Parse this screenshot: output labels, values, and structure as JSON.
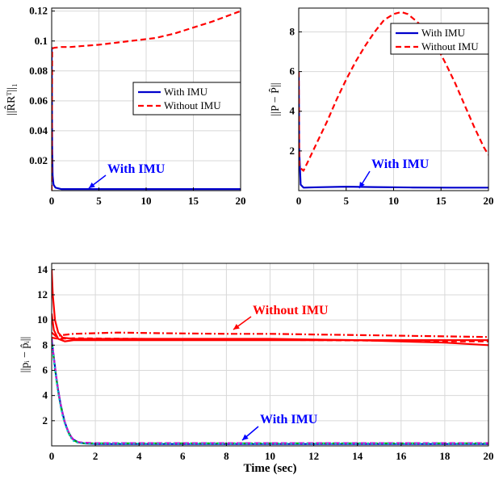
{
  "chart_data": [
    {
      "id": "top-left",
      "type": "line",
      "title": "",
      "xlabel": "",
      "ylabel": "||R̂Rᵀ||₁",
      "xlim": [
        0,
        20
      ],
      "ylim": [
        0,
        0.122
      ],
      "xticks": [
        "0",
        "5",
        "10",
        "15",
        "20"
      ],
      "yticks": [
        "0.02",
        "0.04",
        "0.06",
        "0.08",
        "0.1",
        "0.12"
      ],
      "grid": true,
      "legend": {
        "placement": "center-right",
        "entries": [
          "With IMU",
          "Without IMU"
        ]
      },
      "annotations": [
        {
          "text": "With IMU",
          "color": "#0000ff"
        }
      ],
      "series": [
        {
          "name": "With IMU",
          "color": "#0000cc",
          "dash": "solid",
          "x": [
            0,
            0.05,
            0.1,
            0.2,
            0.4,
            0.7,
            1,
            2,
            5,
            10,
            15,
            20
          ],
          "y": [
            0.096,
            0.03,
            0.01,
            0.004,
            0.002,
            0.0015,
            0.001,
            0.001,
            0.001,
            0.001,
            0.001,
            0.001
          ]
        },
        {
          "name": "Without IMU",
          "color": "#ff0000",
          "dash": "dashed",
          "x": [
            0,
            0.05,
            0.3,
            1,
            2,
            3,
            5,
            7,
            9,
            11,
            13,
            15,
            17,
            20
          ],
          "y": [
            0.0,
            0.095,
            0.0955,
            0.096,
            0.096,
            0.0965,
            0.0975,
            0.099,
            0.1005,
            0.102,
            0.105,
            0.109,
            0.113,
            0.12
          ]
        }
      ]
    },
    {
      "id": "top-right",
      "type": "line",
      "title": "",
      "xlabel": "",
      "ylabel": "||P − P̂||",
      "xlim": [
        0,
        20
      ],
      "ylim": [
        0,
        9.2
      ],
      "xticks": [
        "0",
        "5",
        "10",
        "15",
        "20"
      ],
      "yticks": [
        "2",
        "4",
        "6",
        "8"
      ],
      "grid": true,
      "legend": {
        "placement": "top-right",
        "entries": [
          "With IMU",
          "Without IMU"
        ]
      },
      "annotations": [
        {
          "text": "With IMU",
          "color": "#0000ff"
        }
      ],
      "series": [
        {
          "name": "With IMU",
          "color": "#0000cc",
          "dash": "solid",
          "x": [
            0,
            0.05,
            0.2,
            0.5,
            2,
            5,
            8,
            12,
            16,
            20
          ],
          "y": [
            6.0,
            2.0,
            0.3,
            0.15,
            0.17,
            0.2,
            0.18,
            0.16,
            0.15,
            0.15
          ]
        },
        {
          "name": "Without IMU",
          "color": "#ff0000",
          "dash": "dashed",
          "x": [
            0,
            0.05,
            0.5,
            1,
            2,
            3,
            4,
            5,
            6,
            7,
            8,
            9,
            10,
            10.8,
            11.5,
            12.5,
            13.5,
            14.5,
            15.5,
            16.5,
            17.5,
            18.5,
            19.5,
            20
          ],
          "y": [
            6.0,
            1.2,
            1.0,
            1.5,
            2.5,
            3.5,
            4.6,
            5.6,
            6.5,
            7.3,
            8.0,
            8.6,
            8.9,
            9.0,
            8.9,
            8.5,
            8.0,
            7.3,
            6.4,
            5.4,
            4.3,
            3.2,
            2.2,
            1.8
          ]
        }
      ]
    },
    {
      "id": "bottom",
      "type": "line",
      "title": "",
      "xlabel": "Time (sec)",
      "ylabel": "||pᵢ − p̂ᵢ||",
      "xlim": [
        0,
        20
      ],
      "ylim": [
        0,
        14.5
      ],
      "xticks": [
        "0",
        "2",
        "4",
        "6",
        "8",
        "10",
        "12",
        "14",
        "16",
        "18",
        "20"
      ],
      "yticks": [
        "2",
        "4",
        "6",
        "8",
        "10",
        "12",
        "14"
      ],
      "grid": true,
      "legend": null,
      "annotations": [
        {
          "text": "Without IMU",
          "color": "#ff0000"
        },
        {
          "text": "With IMU",
          "color": "#0000ff"
        }
      ],
      "series": [
        {
          "color": "#ff0000",
          "dash": "solid",
          "x": [
            0,
            0.05,
            0.15,
            0.3,
            0.5,
            1,
            3,
            6,
            10,
            14,
            18,
            20
          ],
          "y": [
            14.0,
            12.0,
            10.0,
            9.0,
            8.6,
            8.5,
            8.5,
            8.5,
            8.5,
            8.4,
            8.2,
            8.0
          ]
        },
        {
          "color": "#ff0000",
          "dash": "solid",
          "x": [
            0,
            0.1,
            0.3,
            0.6,
            1,
            4,
            8,
            12,
            16,
            20
          ],
          "y": [
            10.5,
            9.2,
            8.5,
            8.3,
            8.4,
            8.4,
            8.4,
            8.4,
            8.4,
            8.4
          ]
        },
        {
          "color": "#ff0000",
          "dash": "dashdot",
          "x": [
            0,
            0.2,
            0.5,
            1,
            2,
            3,
            5,
            8,
            10,
            12,
            14,
            16,
            18,
            20
          ],
          "y": [
            9.0,
            8.7,
            8.8,
            8.9,
            8.95,
            9.0,
            8.95,
            8.9,
            8.9,
            8.85,
            8.8,
            8.75,
            8.7,
            8.65
          ]
        },
        {
          "color": "#ff0000",
          "dash": "dashed",
          "x": [
            0,
            0.3,
            1,
            4,
            8,
            12,
            16,
            18,
            20
          ],
          "y": [
            8.6,
            8.5,
            8.55,
            8.5,
            8.45,
            8.4,
            8.35,
            8.3,
            8.3
          ]
        },
        {
          "color": "#0000cc",
          "dash": "solid",
          "x": [
            0,
            0.1,
            0.2,
            0.3,
            0.4,
            0.5,
            0.6,
            0.7,
            0.8,
            0.9,
            1.0,
            1.2,
            1.5,
            2,
            5,
            10,
            15,
            20
          ],
          "y": [
            8.5,
            7.0,
            5.6,
            4.4,
            3.4,
            2.6,
            1.9,
            1.4,
            1.0,
            0.7,
            0.5,
            0.3,
            0.2,
            0.15,
            0.15,
            0.15,
            0.15,
            0.15
          ]
        },
        {
          "color": "#00aa00",
          "dash": "dashdot",
          "x": [
            0,
            0.1,
            0.2,
            0.3,
            0.4,
            0.5,
            0.6,
            0.7,
            0.8,
            0.9,
            1.0,
            1.2,
            1.5,
            2,
            5,
            10,
            15,
            20
          ],
          "y": [
            8.3,
            6.9,
            5.5,
            4.3,
            3.3,
            2.5,
            1.85,
            1.35,
            0.95,
            0.65,
            0.45,
            0.28,
            0.2,
            0.2,
            0.2,
            0.2,
            0.2,
            0.2
          ]
        },
        {
          "color": "#cc00cc",
          "dash": "dashed",
          "x": [
            0,
            0.1,
            0.2,
            0.3,
            0.4,
            0.5,
            0.6,
            0.7,
            0.8,
            0.9,
            1.0,
            1.2,
            1.5,
            2,
            5,
            10,
            15,
            20
          ],
          "y": [
            8.4,
            7.0,
            5.6,
            4.4,
            3.4,
            2.55,
            1.9,
            1.4,
            1.0,
            0.7,
            0.5,
            0.3,
            0.25,
            0.22,
            0.22,
            0.22,
            0.22,
            0.22
          ]
        },
        {
          "color": "#00cccc",
          "dash": "dotted",
          "x": [
            0,
            0.1,
            0.2,
            0.3,
            0.4,
            0.5,
            0.6,
            0.7,
            0.8,
            0.9,
            1.0,
            1.2,
            1.5,
            2,
            5,
            10,
            15,
            20
          ],
          "y": [
            8.2,
            6.8,
            5.4,
            4.2,
            3.2,
            2.4,
            1.8,
            1.3,
            0.9,
            0.6,
            0.4,
            0.25,
            0.18,
            0.18,
            0.18,
            0.18,
            0.18,
            0.18
          ]
        }
      ]
    }
  ]
}
